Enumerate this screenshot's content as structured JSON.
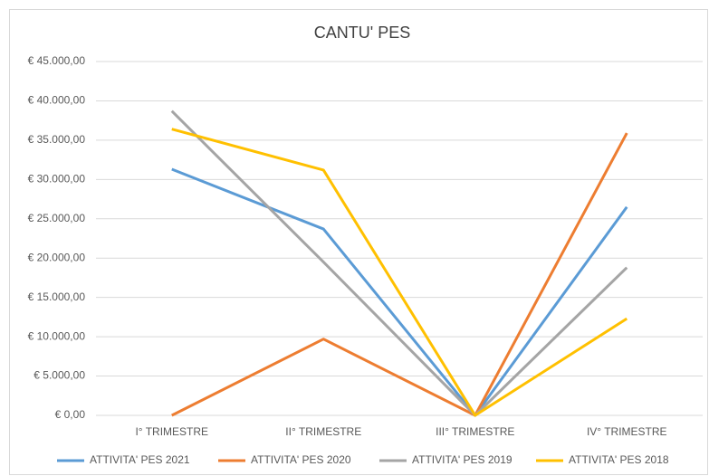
{
  "chart_data": {
    "type": "line",
    "title": "CANTU' PES",
    "categories": [
      "I° TRIMESTRE",
      "II° TRIMESTRE",
      "III° TRIMESTRE",
      "IV° TRIMESTRE"
    ],
    "series": [
      {
        "name": "ATTIVITA' PES 2021",
        "color": "#5b9bd5",
        "values": [
          31300,
          23700,
          0,
          26500
        ]
      },
      {
        "name": "ATTIVITA' PES 2020",
        "color": "#ed7d31",
        "values": [
          0,
          9700,
          0,
          35900
        ]
      },
      {
        "name": "ATTIVITA' PES 2019",
        "color": "#a5a5a5",
        "values": [
          38700,
          19500,
          0,
          18800
        ]
      },
      {
        "name": "ATTIVITA' PES 2018",
        "color": "#ffc000",
        "values": [
          36400,
          31200,
          0,
          12300
        ]
      }
    ],
    "ylim": [
      0,
      45000
    ],
    "yticks": [
      {
        "value": 0,
        "label": "€ 0,00"
      },
      {
        "value": 5000,
        "label": "€ 5.000,00"
      },
      {
        "value": 10000,
        "label": "€ 10.000,00"
      },
      {
        "value": 15000,
        "label": "€ 15.000,00"
      },
      {
        "value": 20000,
        "label": "€ 20.000,00"
      },
      {
        "value": 25000,
        "label": "€ 25.000,00"
      },
      {
        "value": 30000,
        "label": "€ 30.000,00"
      },
      {
        "value": 35000,
        "label": "€ 35.000,00"
      },
      {
        "value": 40000,
        "label": "€ 40.000,00"
      },
      {
        "value": 45000,
        "label": "€ 45.000,00"
      }
    ],
    "grid": true,
    "legend": "bottom"
  }
}
